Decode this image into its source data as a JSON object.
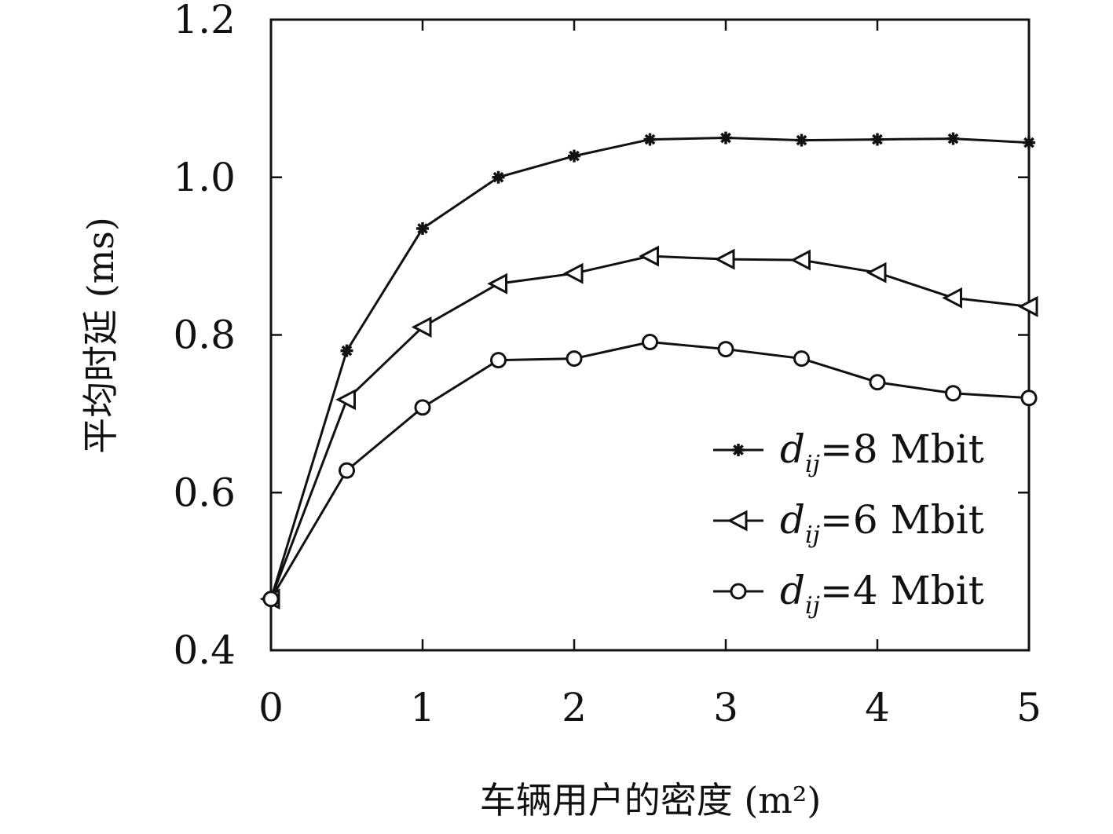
{
  "chart_data": {
    "type": "line",
    "xlabel": "车辆用户的密度 (m²)",
    "ylabel": "平均时延 (ms)",
    "xlim": [
      0,
      5
    ],
    "ylim": [
      0.4,
      1.2
    ],
    "xticks": [
      0,
      1,
      2,
      3,
      4,
      5
    ],
    "xtick_labels": [
      "0",
      "1",
      "2",
      "3",
      "4",
      "5"
    ],
    "yticks": [
      0.4,
      0.6,
      0.8,
      1.0,
      1.2
    ],
    "ytick_labels": [
      "0.4",
      "0.6",
      "0.8",
      "1.0",
      "1.2"
    ],
    "grid": false,
    "legend_position": "bottom-right",
    "x": [
      0,
      0.5,
      1,
      1.5,
      2,
      2.5,
      3,
      3.5,
      4,
      4.5,
      5
    ],
    "series": [
      {
        "name": "d_ij=8 Mbit",
        "legend": {
          "var": "d",
          "sub": "ij",
          "rest": "=8 Mbit"
        },
        "marker": "star",
        "values": [
          0.465,
          0.78,
          0.935,
          1.0,
          1.027,
          1.048,
          1.05,
          1.047,
          1.048,
          1.049,
          1.044
        ]
      },
      {
        "name": "d_ij=6 Mbit",
        "legend": {
          "var": "d",
          "sub": "ij",
          "rest": "=6 Mbit"
        },
        "marker": "triangle-left",
        "values": [
          0.465,
          0.718,
          0.81,
          0.865,
          0.878,
          0.9,
          0.896,
          0.895,
          0.879,
          0.847,
          0.836
        ]
      },
      {
        "name": "d_ij=4 Mbit",
        "legend": {
          "var": "d",
          "sub": "ij",
          "rest": "=4 Mbit"
        },
        "marker": "circle",
        "values": [
          0.465,
          0.628,
          0.708,
          0.768,
          0.77,
          0.791,
          0.782,
          0.77,
          0.74,
          0.726,
          0.72
        ]
      }
    ],
    "colors": {
      "line": "#111111",
      "background": "#ffffff"
    }
  }
}
